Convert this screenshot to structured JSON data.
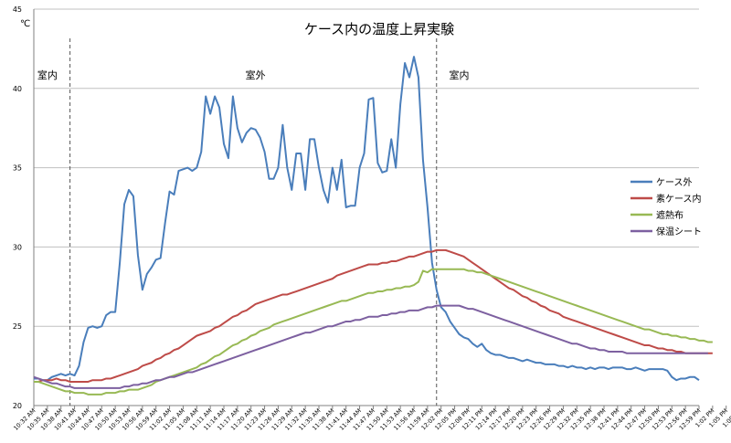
{
  "chart_data": {
    "type": "line",
    "title": "ケース内の温度上昇実験",
    "ylabel": "℃",
    "ylim": [
      20,
      45
    ],
    "yticks": [
      20,
      25,
      30,
      35,
      40,
      45
    ],
    "grid": true,
    "legend_position": "right",
    "x_tick_labels": [
      "10:32 AM",
      "10:35 AM",
      "10:38 AM",
      "10:41 AM",
      "10:44 AM",
      "10:47 AM",
      "10:50 AM",
      "10:53 AM",
      "10:56 AM",
      "10:59 AM",
      "11:02 AM",
      "11:05 AM",
      "11:08 AM",
      "11:11 AM",
      "11:14 AM",
      "11:17 AM",
      "11:20 AM",
      "11:23 AM",
      "11:26 AM",
      "11:29 AM",
      "11:32 AM",
      "11:35 AM",
      "11:38 AM",
      "11:41 AM",
      "11:44 AM",
      "11:47 AM",
      "11:50 AM",
      "11:53 AM",
      "11:56 AM",
      "11:59 AM",
      "12:02 PM",
      "12:05 PM",
      "12:08 PM",
      "12:11 PM",
      "12:14 PM",
      "12:17 PM",
      "12:20 PM",
      "12:23 PM",
      "12:26 PM",
      "12:29 PM",
      "12:32 PM",
      "12:35 PM",
      "12:38 PM",
      "12:41 PM",
      "12:44 PM",
      "12:47 PM",
      "12:50 PM",
      "12:53 PM",
      "12:56 PM",
      "12:59 PM",
      "1:02 PM",
      "1:05 PM",
      "1:08 PM"
    ],
    "x_start": "10:32 AM",
    "x_interval_minutes": 1,
    "annotations": [
      {
        "text": "室内",
        "at_time": "10:35 AM"
      },
      {
        "text": "室外",
        "at_time": "11:21 AM"
      },
      {
        "text": "室内",
        "at_time": "12:06 PM"
      }
    ],
    "dividers_at": [
      "10:40 AM",
      "12:01 PM"
    ],
    "series": [
      {
        "name": "ケース外",
        "color": "#4a7ebb",
        "values": [
          21.7,
          21.7,
          21.6,
          21.6,
          21.8,
          21.9,
          22,
          21.9,
          22,
          21.9,
          22.5,
          24,
          24.9,
          25,
          24.9,
          25,
          25.7,
          25.9,
          25.9,
          29,
          32.7,
          33.6,
          33.2,
          29.5,
          27.3,
          28.3,
          28.7,
          29.2,
          29.3,
          31.5,
          33.5,
          33.3,
          34.8,
          34.9,
          35,
          34.8,
          35,
          36,
          39.5,
          38.4,
          39.5,
          38.8,
          36.5,
          35.6,
          39.5,
          37.5,
          36.6,
          37.2,
          37.5,
          37.4,
          36.9,
          36,
          34.3,
          34.3,
          35,
          37.7,
          35,
          33.6,
          35.9,
          35.9,
          33.6,
          36.8,
          36.8,
          35,
          33.6,
          32.8,
          35,
          33.6,
          35.5,
          32.5,
          32.6,
          32.6,
          35,
          35.9,
          39.3,
          39.4,
          35.3,
          34.7,
          34.8,
          36.8,
          35,
          39,
          41.6,
          40.7,
          42,
          40.7,
          35.5,
          32.5,
          29,
          27.3,
          26.2,
          25.9,
          25.3,
          24.9,
          24.5,
          24.3,
          24.2,
          23.9,
          23.7,
          23.9,
          23.5,
          23.3,
          23.2,
          23.2,
          23.1,
          23,
          23,
          22.9,
          22.8,
          22.9,
          22.8,
          22.7,
          22.7,
          22.6,
          22.6,
          22.6,
          22.5,
          22.5,
          22.4,
          22.5,
          22.4,
          22.4,
          22.3,
          22.4,
          22.3,
          22.4,
          22.4,
          22.3,
          22.4,
          22.4,
          22.4,
          22.3,
          22.3,
          22.4,
          22.3,
          22.2,
          22.3,
          22.3,
          22.3,
          22.3,
          22.2,
          21.8,
          21.6,
          21.7,
          21.7,
          21.8,
          21.8,
          21.6
        ]
      },
      {
        "name": "素ケース内",
        "color": "#be4b48",
        "values": [
          21.5,
          21.5,
          21.6,
          21.6,
          21.6,
          21.7,
          21.6,
          21.6,
          21.5,
          21.5,
          21.5,
          21.5,
          21.5,
          21.6,
          21.6,
          21.6,
          21.7,
          21.7,
          21.8,
          21.9,
          22,
          22.1,
          22.2,
          22.3,
          22.5,
          22.6,
          22.7,
          22.9,
          23,
          23.2,
          23.3,
          23.5,
          23.6,
          23.8,
          24,
          24.2,
          24.4,
          24.5,
          24.6,
          24.7,
          24.9,
          25,
          25.2,
          25.4,
          25.6,
          25.7,
          25.9,
          26,
          26.2,
          26.4,
          26.5,
          26.6,
          26.7,
          26.8,
          26.9,
          27,
          27,
          27.1,
          27.2,
          27.3,
          27.4,
          27.5,
          27.6,
          27.7,
          27.8,
          27.9,
          28,
          28.2,
          28.3,
          28.4,
          28.5,
          28.6,
          28.7,
          28.8,
          28.9,
          28.9,
          28.9,
          29,
          29,
          29.1,
          29.1,
          29.2,
          29.3,
          29.4,
          29.4,
          29.5,
          29.6,
          29.7,
          29.7,
          29.8,
          29.8,
          29.8,
          29.7,
          29.6,
          29.5,
          29.4,
          29.2,
          29,
          28.8,
          28.6,
          28.4,
          28.2,
          28,
          27.8,
          27.6,
          27.4,
          27.3,
          27.1,
          26.9,
          26.8,
          26.6,
          26.5,
          26.3,
          26.2,
          26,
          25.9,
          25.8,
          25.6,
          25.5,
          25.4,
          25.3,
          25.2,
          25.1,
          25,
          24.9,
          24.8,
          24.7,
          24.6,
          24.5,
          24.4,
          24.3,
          24.2,
          24.1,
          24,
          23.9,
          23.8,
          23.8,
          23.7,
          23.6,
          23.6,
          23.5,
          23.5,
          23.4,
          23.4,
          23.3,
          23.3,
          23.3,
          23.3,
          23.3,
          23.3,
          23.3
        ]
      },
      {
        "name": "遮熱布",
        "color": "#98b954",
        "values": [
          21.5,
          21.5,
          21.4,
          21.3,
          21.2,
          21.1,
          21,
          20.9,
          20.9,
          20.8,
          20.8,
          20.8,
          20.7,
          20.7,
          20.7,
          20.7,
          20.8,
          20.8,
          20.8,
          20.9,
          20.9,
          21,
          21,
          21,
          21.1,
          21.2,
          21.3,
          21.5,
          21.6,
          21.7,
          21.8,
          21.9,
          22,
          22.1,
          22.2,
          22.3,
          22.4,
          22.6,
          22.7,
          22.9,
          23.1,
          23.2,
          23.4,
          23.6,
          23.8,
          23.9,
          24.1,
          24.2,
          24.4,
          24.5,
          24.7,
          24.8,
          24.9,
          25.1,
          25.2,
          25.3,
          25.4,
          25.5,
          25.6,
          25.7,
          25.8,
          25.9,
          26,
          26.1,
          26.2,
          26.3,
          26.4,
          26.5,
          26.6,
          26.6,
          26.7,
          26.8,
          26.9,
          27,
          27.1,
          27.1,
          27.2,
          27.2,
          27.3,
          27.3,
          27.4,
          27.4,
          27.5,
          27.5,
          27.6,
          27.8,
          28.5,
          28.4,
          28.6,
          28.6,
          28.6,
          28.6,
          28.6,
          28.6,
          28.6,
          28.6,
          28.5,
          28.5,
          28.4,
          28.4,
          28.3,
          28.2,
          28.1,
          28,
          27.9,
          27.8,
          27.7,
          27.6,
          27.5,
          27.4,
          27.3,
          27.2,
          27.1,
          27,
          26.9,
          26.8,
          26.7,
          26.6,
          26.5,
          26.4,
          26.3,
          26.2,
          26.1,
          26,
          25.9,
          25.8,
          25.7,
          25.6,
          25.5,
          25.4,
          25.3,
          25.2,
          25.1,
          25,
          24.9,
          24.8,
          24.8,
          24.7,
          24.6,
          24.5,
          24.5,
          24.4,
          24.4,
          24.3,
          24.3,
          24.2,
          24.2,
          24.1,
          24.1,
          24,
          24
        ]
      },
      {
        "name": "保温シート",
        "color": "#7d60a0",
        "values": [
          21.8,
          21.7,
          21.6,
          21.5,
          21.4,
          21.4,
          21.3,
          21.2,
          21.2,
          21.1,
          21.1,
          21.1,
          21.1,
          21.1,
          21.1,
          21.1,
          21.1,
          21.1,
          21.1,
          21.1,
          21.2,
          21.2,
          21.3,
          21.3,
          21.4,
          21.4,
          21.5,
          21.6,
          21.6,
          21.7,
          21.8,
          21.8,
          21.9,
          22,
          22.1,
          22.1,
          22.2,
          22.3,
          22.4,
          22.5,
          22.6,
          22.7,
          22.8,
          22.9,
          23,
          23.1,
          23.2,
          23.3,
          23.4,
          23.5,
          23.6,
          23.7,
          23.8,
          23.9,
          24,
          24.1,
          24.2,
          24.3,
          24.4,
          24.5,
          24.6,
          24.6,
          24.7,
          24.8,
          24.9,
          25,
          25,
          25.1,
          25.2,
          25.3,
          25.3,
          25.4,
          25.4,
          25.5,
          25.6,
          25.6,
          25.6,
          25.7,
          25.7,
          25.8,
          25.8,
          25.9,
          25.9,
          26,
          26,
          26,
          26.1,
          26.2,
          26.2,
          26.3,
          26.3,
          26.3,
          26.3,
          26.3,
          26.3,
          26.2,
          26.1,
          26.1,
          26,
          25.9,
          25.8,
          25.7,
          25.6,
          25.5,
          25.4,
          25.3,
          25.2,
          25.1,
          25,
          24.9,
          24.8,
          24.7,
          24.6,
          24.5,
          24.4,
          24.3,
          24.2,
          24.1,
          24,
          23.9,
          23.9,
          23.8,
          23.7,
          23.6,
          23.6,
          23.5,
          23.5,
          23.4,
          23.4,
          23.4,
          23.4,
          23.3,
          23.3,
          23.3,
          23.3,
          23.3,
          23.3,
          23.3,
          23.3,
          23.3,
          23.3,
          23.3,
          23.3,
          23.3,
          23.3,
          23.3,
          23.3,
          23.3,
          23.3,
          23.3
        ]
      }
    ]
  }
}
